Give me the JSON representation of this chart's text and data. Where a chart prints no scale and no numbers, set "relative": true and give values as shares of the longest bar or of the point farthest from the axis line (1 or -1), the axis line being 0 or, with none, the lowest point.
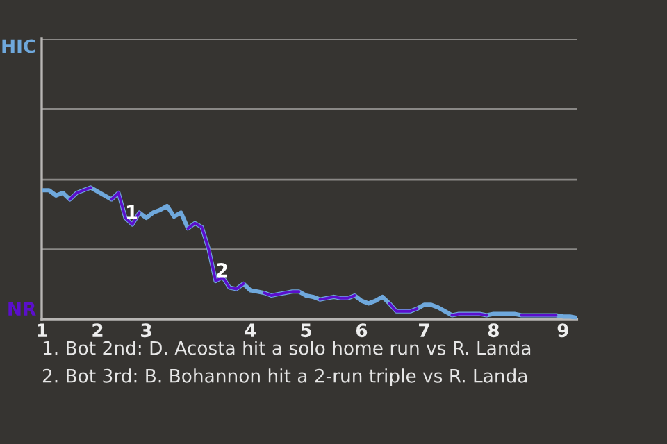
{
  "chart_data": {
    "type": "line",
    "relative": true,
    "categories": [
      "1",
      null,
      null,
      null,
      null,
      null,
      null,
      null,
      "2",
      null,
      null,
      null,
      null,
      null,
      null,
      "3",
      null,
      null,
      null,
      null,
      null,
      null,
      null,
      null,
      null,
      null,
      null,
      null,
      null,
      null,
      "4",
      null,
      null,
      null,
      null,
      null,
      null,
      null,
      "5",
      null,
      null,
      null,
      null,
      null,
      null,
      null,
      "6",
      null,
      null,
      null,
      null,
      null,
      null,
      null,
      null,
      "7",
      null,
      null,
      null,
      null,
      null,
      null,
      null,
      null,
      null,
      "8",
      null,
      null,
      null,
      null,
      null,
      null,
      null,
      null,
      null,
      "9",
      null,
      null
    ],
    "ref_lines": [
      {
        "axis": "y",
        "value": 0.53,
        "color": "#8a8886"
      },
      {
        "axis": "y",
        "value": 1.06,
        "color": "#8a8886"
      },
      {
        "axis": "y",
        "value": 1.6,
        "color": "#8a8886"
      },
      {
        "axis": "y",
        "value": 2.13,
        "color": "#8a8886"
      }
    ],
    "series": [
      {
        "color": "#6fa8dc",
        "values": [
          0.98,
          0.98,
          0.94,
          0.96,
          0.91,
          0.96,
          0.98,
          1,
          0.97,
          0.94,
          0.91,
          0.96,
          0.77,
          0.72,
          0.81,
          0.77,
          0.81,
          0.83,
          0.86,
          0.78,
          0.81,
          0.69,
          0.73,
          0.7,
          0.53,
          0.29,
          0.32,
          0.24,
          0.23,
          0.27,
          0.22,
          0.21,
          0.2,
          0.18,
          0.19,
          0.2,
          0.21,
          0.21,
          0.18,
          0.17,
          0.15,
          0.16,
          0.17,
          0.16,
          0.16,
          0.18,
          0.14,
          0.12,
          0.14,
          0.17,
          0.12,
          0.06,
          0.06,
          0.06,
          0.08,
          0.11,
          0.11,
          0.09,
          0.06,
          0.03,
          0.04,
          0.04,
          0.04,
          0.04,
          0.03,
          0.04,
          0.04,
          0.04,
          0.04,
          0.03,
          0.03,
          0.03,
          0.03,
          0.03,
          0.03,
          0.02,
          0.02,
          0.01
        ]
      },
      {
        "color": "#5b0fcc",
        "values": [
          null,
          null,
          null,
          null,
          0.91,
          0.96,
          0.98,
          1,
          null,
          null,
          0.91,
          0.96,
          0.77,
          0.72,
          0.81,
          null,
          null,
          null,
          null,
          null,
          null,
          0.69,
          0.73,
          0.7,
          0.53,
          0.29,
          0.32,
          0.24,
          0.23,
          0.27,
          null,
          null,
          0.2,
          0.18,
          0.19,
          0.2,
          0.21,
          0.21,
          null,
          null,
          0.15,
          0.16,
          0.17,
          0.16,
          0.16,
          0.18,
          null,
          null,
          null,
          null,
          0.12,
          0.06,
          0.06,
          0.06,
          0.08,
          null,
          null,
          null,
          null,
          0.03,
          0.04,
          0.04,
          0.04,
          0.04,
          0.03,
          null,
          null,
          null,
          null,
          0.03,
          0.03,
          0.03,
          0.03,
          0.03,
          0.03,
          null,
          null,
          null
        ]
      }
    ],
    "annotations": [
      "HIC",
      "NR",
      {
        "text": "1",
        "y": 0.8
      },
      {
        "text": "2",
        "y": 0.36
      },
      "1. Bot 2nd: D. Acosta hit a solo home run vs R. Landa",
      "2. Bot 3rd: B. Bohannon hit a 2-run triple vs R. Landa"
    ]
  }
}
